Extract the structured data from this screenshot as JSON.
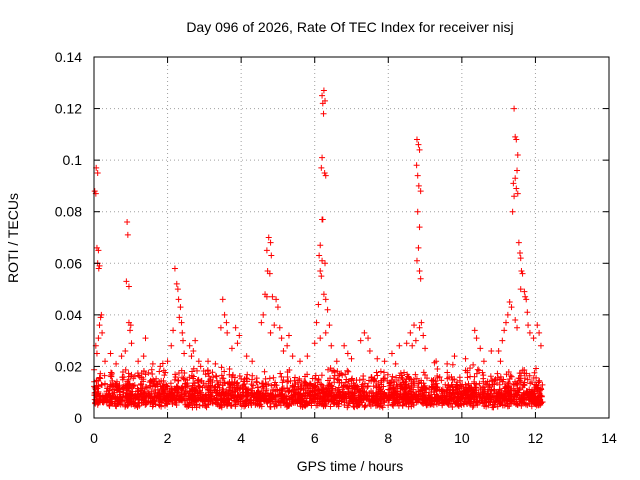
{
  "chart_data": {
    "type": "scatter",
    "title": "Day 096 of 2026, Rate Of TEC Index for receiver nisj",
    "xlabel": "GPS time / hours",
    "ylabel": "ROTI / TECUs",
    "xlim": [
      0,
      14
    ],
    "ylim": [
      0,
      0.14
    ],
    "xticks": [
      "0",
      "2",
      "4",
      "6",
      "8",
      "10",
      "12",
      "14"
    ],
    "yticks": [
      "0",
      "0.02",
      "0.04",
      "0.06",
      "0.08",
      "0.1",
      "0.12",
      "0.14"
    ],
    "grid": true,
    "marker": "+",
    "color": "#ff0000",
    "series": [
      {
        "points": [
          [
            0.02,
            0.088
          ],
          [
            0.05,
            0.087
          ],
          [
            0.06,
            0.097
          ],
          [
            0.1,
            0.095
          ],
          [
            0.08,
            0.066
          ],
          [
            0.12,
            0.065
          ],
          [
            0.1,
            0.06
          ],
          [
            0.15,
            0.059
          ],
          [
            0.13,
            0.058
          ],
          [
            0.2,
            0.04
          ],
          [
            0.18,
            0.039
          ],
          [
            0.05,
            0.028
          ],
          [
            0.08,
            0.025
          ],
          [
            0.12,
            0.031
          ],
          [
            0.15,
            0.036
          ],
          [
            0.22,
            0.033
          ],
          [
            0.9,
            0.076
          ],
          [
            0.92,
            0.071
          ],
          [
            0.88,
            0.053
          ],
          [
            0.95,
            0.051
          ],
          [
            0.95,
            0.037
          ],
          [
            1.0,
            0.036
          ],
          [
            0.98,
            0.034
          ],
          [
            1.02,
            0.029
          ],
          [
            0.85,
            0.026
          ],
          [
            1.4,
            0.031
          ],
          [
            1.35,
            0.024
          ],
          [
            2.2,
            0.058
          ],
          [
            2.25,
            0.052
          ],
          [
            2.28,
            0.05
          ],
          [
            2.3,
            0.046
          ],
          [
            2.35,
            0.043
          ],
          [
            2.32,
            0.039
          ],
          [
            2.38,
            0.037
          ],
          [
            2.15,
            0.034
          ],
          [
            2.4,
            0.033
          ],
          [
            2.42,
            0.03
          ],
          [
            2.1,
            0.028
          ],
          [
            2.45,
            0.025
          ],
          [
            2.0,
            0.022
          ],
          [
            2.6,
            0.028
          ],
          [
            2.65,
            0.024
          ],
          [
            2.75,
            0.03
          ],
          [
            2.7,
            0.026
          ],
          [
            2.85,
            0.022
          ],
          [
            3.1,
            0.022
          ],
          [
            3.5,
            0.046
          ],
          [
            3.55,
            0.04
          ],
          [
            3.6,
            0.037
          ],
          [
            3.45,
            0.035
          ],
          [
            3.62,
            0.033
          ],
          [
            3.85,
            0.035
          ],
          [
            3.95,
            0.032
          ],
          [
            3.9,
            0.029
          ],
          [
            3.75,
            0.027
          ],
          [
            4.15,
            0.024
          ],
          [
            4.7,
            0.065
          ],
          [
            4.75,
            0.07
          ],
          [
            4.8,
            0.068
          ],
          [
            4.82,
            0.063
          ],
          [
            4.72,
            0.057
          ],
          [
            4.78,
            0.056
          ],
          [
            4.65,
            0.048
          ],
          [
            4.7,
            0.047
          ],
          [
            4.85,
            0.047
          ],
          [
            4.6,
            0.04
          ],
          [
            4.55,
            0.037
          ],
          [
            4.95,
            0.046
          ],
          [
            5.0,
            0.043
          ],
          [
            4.9,
            0.036
          ],
          [
            4.8,
            0.033
          ],
          [
            5.05,
            0.035
          ],
          [
            5.1,
            0.031
          ],
          [
            5.3,
            0.032
          ],
          [
            5.25,
            0.028
          ],
          [
            5.15,
            0.026
          ],
          [
            5.4,
            0.024
          ],
          [
            6.2,
            0.125
          ],
          [
            6.25,
            0.127
          ],
          [
            6.22,
            0.122
          ],
          [
            6.28,
            0.123
          ],
          [
            6.24,
            0.118
          ],
          [
            6.2,
            0.101
          ],
          [
            6.18,
            0.097
          ],
          [
            6.27,
            0.095
          ],
          [
            6.3,
            0.094
          ],
          [
            6.2,
            0.077
          ],
          [
            6.22,
            0.077
          ],
          [
            6.15,
            0.067
          ],
          [
            6.12,
            0.063
          ],
          [
            6.2,
            0.061
          ],
          [
            6.28,
            0.06
          ],
          [
            6.15,
            0.057
          ],
          [
            6.18,
            0.055
          ],
          [
            6.25,
            0.048
          ],
          [
            6.3,
            0.046
          ],
          [
            6.1,
            0.044
          ],
          [
            6.35,
            0.042
          ],
          [
            6.05,
            0.037
          ],
          [
            6.4,
            0.036
          ],
          [
            6.3,
            0.033
          ],
          [
            6.15,
            0.031
          ],
          [
            6.0,
            0.029
          ],
          [
            6.45,
            0.028
          ],
          [
            6.8,
            0.028
          ],
          [
            6.9,
            0.025
          ],
          [
            7.25,
            0.03
          ],
          [
            7.35,
            0.033
          ],
          [
            7.45,
            0.031
          ],
          [
            7.5,
            0.026
          ],
          [
            7.0,
            0.023
          ],
          [
            8.1,
            0.025
          ],
          [
            8.3,
            0.028
          ],
          [
            8.5,
            0.029
          ],
          [
            8.78,
            0.108
          ],
          [
            8.82,
            0.106
          ],
          [
            8.85,
            0.104
          ],
          [
            8.77,
            0.098
          ],
          [
            8.8,
            0.094
          ],
          [
            8.83,
            0.09
          ],
          [
            8.88,
            0.088
          ],
          [
            8.8,
            0.08
          ],
          [
            8.85,
            0.074
          ],
          [
            8.82,
            0.066
          ],
          [
            8.78,
            0.061
          ],
          [
            8.85,
            0.057
          ],
          [
            8.88,
            0.054
          ],
          [
            8.7,
            0.036
          ],
          [
            8.85,
            0.035
          ],
          [
            8.9,
            0.037
          ],
          [
            8.95,
            0.032
          ],
          [
            8.75,
            0.03
          ],
          [
            8.6,
            0.033
          ],
          [
            8.65,
            0.028
          ],
          [
            9.0,
            0.027
          ],
          [
            9.8,
            0.024
          ],
          [
            10.35,
            0.034
          ],
          [
            10.4,
            0.031
          ],
          [
            10.5,
            0.027
          ],
          [
            10.8,
            0.026
          ],
          [
            11.42,
            0.12
          ],
          [
            11.45,
            0.109
          ],
          [
            11.48,
            0.108
          ],
          [
            11.52,
            0.102
          ],
          [
            11.5,
            0.096
          ],
          [
            11.45,
            0.093
          ],
          [
            11.4,
            0.091
          ],
          [
            11.48,
            0.089
          ],
          [
            11.52,
            0.087
          ],
          [
            11.42,
            0.086
          ],
          [
            11.38,
            0.08
          ],
          [
            11.55,
            0.068
          ],
          [
            11.58,
            0.064
          ],
          [
            11.6,
            0.062
          ],
          [
            11.62,
            0.057
          ],
          [
            11.65,
            0.056
          ],
          [
            11.6,
            0.05
          ],
          [
            11.7,
            0.049
          ],
          [
            11.72,
            0.047
          ],
          [
            11.75,
            0.046
          ],
          [
            11.78,
            0.041
          ],
          [
            11.3,
            0.045
          ],
          [
            11.35,
            0.043
          ],
          [
            11.25,
            0.04
          ],
          [
            11.2,
            0.037
          ],
          [
            11.15,
            0.034
          ],
          [
            11.45,
            0.038
          ],
          [
            11.5,
            0.035
          ],
          [
            11.8,
            0.036
          ],
          [
            11.85,
            0.033
          ],
          [
            11.95,
            0.031
          ],
          [
            12.05,
            0.036
          ],
          [
            12.1,
            0.033
          ],
          [
            12.15,
            0.028
          ],
          [
            11.1,
            0.03
          ],
          [
            11.0,
            0.026
          ],
          [
            0.3,
            0.022
          ],
          [
            0.45,
            0.025
          ],
          [
            0.6,
            0.021
          ],
          [
            0.75,
            0.024
          ],
          [
            1.2,
            0.022
          ],
          [
            1.6,
            0.021
          ],
          [
            1.8,
            0.02
          ],
          [
            2.9,
            0.02
          ],
          [
            3.3,
            0.021
          ],
          [
            4.3,
            0.022
          ],
          [
            5.6,
            0.022
          ],
          [
            5.8,
            0.024
          ],
          [
            6.6,
            0.022
          ],
          [
            7.7,
            0.023
          ],
          [
            7.9,
            0.022
          ],
          [
            8.2,
            0.021
          ],
          [
            9.3,
            0.022
          ],
          [
            9.6,
            0.021
          ],
          [
            10.1,
            0.023
          ],
          [
            10.6,
            0.022
          ],
          [
            11.05,
            0.022
          ]
        ]
      }
    ],
    "dense_band": {
      "x_range": [
        0,
        12.2
      ],
      "y_typical_range": [
        0.002,
        0.02
      ],
      "note_shown": ""
    }
  }
}
